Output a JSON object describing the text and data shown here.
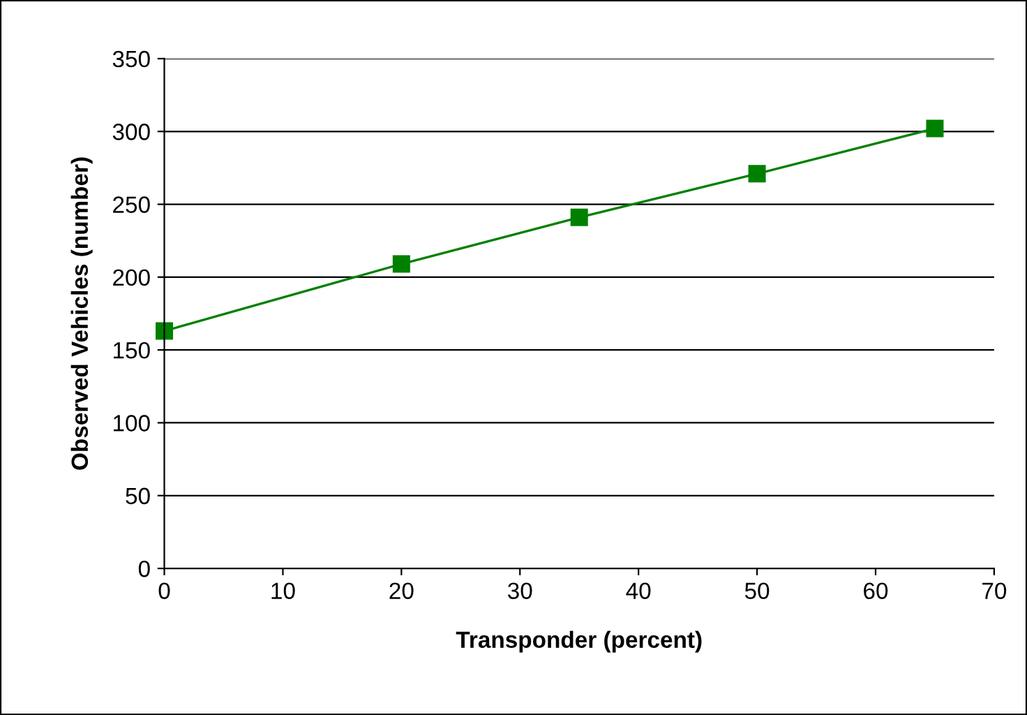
{
  "chart_data": {
    "type": "line",
    "xlabel": "Transponder (percent)",
    "ylabel": "Observed Vehicles (number)",
    "x": [
      0,
      20,
      35,
      50,
      65
    ],
    "series": [
      {
        "color": "#008000",
        "values": [
          163,
          209,
          241,
          271,
          302
        ]
      }
    ],
    "marker": "square",
    "line_style": "solid",
    "xlim": [
      0,
      70
    ],
    "xticks": [
      0,
      10,
      20,
      30,
      40,
      50,
      60,
      70
    ],
    "ylim": [
      0,
      350
    ],
    "yticks": [
      0,
      50,
      100,
      150,
      200,
      250,
      300,
      350
    ],
    "grid": "y",
    "legend": false
  }
}
